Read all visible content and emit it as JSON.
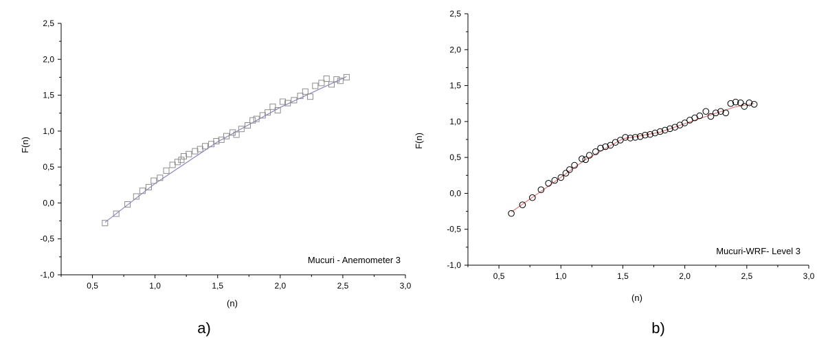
{
  "chart_data": [
    {
      "type": "scatter",
      "caption": "a)",
      "annotation": "Mucuri - Anemometer 3",
      "xlabel": "(n)",
      "ylabel": "F(n)",
      "xlim": [
        0.25,
        3.0
      ],
      "ylim": [
        -1.0,
        2.5
      ],
      "xticks": [
        "0,5",
        "1,0",
        "1,5",
        "2,0",
        "2,5",
        "3,0"
      ],
      "yticks": [
        "-1,0",
        "-0,5",
        "0,0",
        "0,5",
        "1,0",
        "1,5",
        "2,0",
        "2,5"
      ],
      "grid": false,
      "marker": "square",
      "series": [
        {
          "x": [
            0.6,
            0.69,
            0.78,
            0.85,
            0.9,
            0.95,
            0.99,
            1.04,
            1.09,
            1.14,
            1.18,
            1.21,
            1.23,
            1.27,
            1.32,
            1.36,
            1.4,
            1.45,
            1.49,
            1.53,
            1.57,
            1.62,
            1.65,
            1.69,
            1.74,
            1.78,
            1.81,
            1.86,
            1.9,
            1.94,
            1.98,
            2.02,
            2.06,
            2.11,
            2.16,
            2.2,
            2.24,
            2.28,
            2.33,
            2.37,
            2.41,
            2.45,
            2.48,
            2.53
          ],
          "y": [
            -0.28,
            -0.15,
            -0.02,
            0.09,
            0.17,
            0.22,
            0.31,
            0.35,
            0.45,
            0.53,
            0.57,
            0.6,
            0.65,
            0.68,
            0.72,
            0.75,
            0.79,
            0.82,
            0.86,
            0.88,
            0.93,
            0.98,
            0.95,
            1.03,
            1.08,
            1.15,
            1.17,
            1.22,
            1.26,
            1.34,
            1.29,
            1.41,
            1.39,
            1.43,
            1.49,
            1.55,
            1.48,
            1.63,
            1.67,
            1.73,
            1.65,
            1.72,
            1.7,
            1.75
          ]
        }
      ],
      "fit": {
        "color": "#8a86c8",
        "x": [
          0.6,
          1.0,
          1.5,
          2.0,
          2.53
        ],
        "y": [
          -0.27,
          0.27,
          0.85,
          1.33,
          1.76
        ]
      },
      "marker_color": "#8c8c8c"
    },
    {
      "type": "scatter",
      "caption": "b)",
      "annotation": "Mucuri-WRF- Level 3",
      "xlabel": "(n)",
      "ylabel": "F(n)",
      "xlim": [
        0.25,
        3.0
      ],
      "ylim": [
        -1.0,
        2.5
      ],
      "xticks": [
        "0,5",
        "1,0",
        "1,5",
        "2,0",
        "2,5",
        "3,0"
      ],
      "yticks": [
        "-1,0",
        "-0,5",
        "0,0",
        "0,5",
        "1,0",
        "1,5",
        "2,0",
        "2,5"
      ],
      "grid": false,
      "marker": "circle",
      "series": [
        {
          "x": [
            0.6,
            0.69,
            0.77,
            0.84,
            0.9,
            0.95,
            1.0,
            1.04,
            1.07,
            1.11,
            1.17,
            1.2,
            1.23,
            1.28,
            1.32,
            1.36,
            1.4,
            1.44,
            1.48,
            1.52,
            1.56,
            1.6,
            1.64,
            1.68,
            1.72,
            1.76,
            1.8,
            1.84,
            1.88,
            1.92,
            1.96,
            2.0,
            2.04,
            2.08,
            2.12,
            2.17,
            2.21,
            2.25,
            2.29,
            2.33,
            2.37,
            2.41,
            2.45,
            2.48,
            2.52,
            2.56
          ],
          "y": [
            -0.28,
            -0.16,
            -0.06,
            0.05,
            0.14,
            0.18,
            0.22,
            0.28,
            0.33,
            0.39,
            0.48,
            0.47,
            0.53,
            0.58,
            0.63,
            0.65,
            0.67,
            0.71,
            0.74,
            0.78,
            0.77,
            0.78,
            0.79,
            0.81,
            0.82,
            0.84,
            0.86,
            0.88,
            0.9,
            0.92,
            0.95,
            0.98,
            1.02,
            1.05,
            1.08,
            1.14,
            1.07,
            1.12,
            1.14,
            1.12,
            1.25,
            1.27,
            1.26,
            1.21,
            1.26,
            1.24
          ]
        }
      ],
      "fit": {
        "color": "#e07a7a",
        "x": [
          0.6,
          0.9,
          1.2,
          1.5,
          1.8,
          2.1,
          2.4,
          2.56
        ],
        "y": [
          -0.26,
          0.1,
          0.47,
          0.76,
          0.85,
          1.03,
          1.2,
          1.25
        ]
      },
      "marker_color": "#000000"
    }
  ]
}
